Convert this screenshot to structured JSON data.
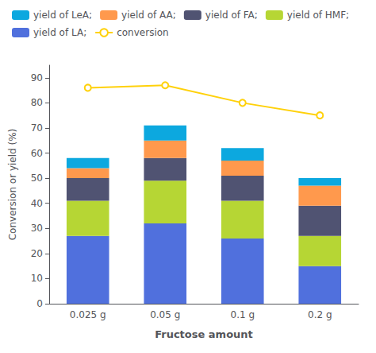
{
  "chart_data": {
    "type": "bar",
    "stacked": true,
    "categories": [
      "0.025 g",
      "0.05 g",
      "0.1 g",
      "0.2 g"
    ],
    "series": [
      {
        "name": "yield of LA;",
        "type": "bar",
        "values": [
          27,
          32,
          26,
          15
        ]
      },
      {
        "name": "yield of HMF;",
        "type": "bar",
        "values": [
          14,
          17,
          15,
          12
        ]
      },
      {
        "name": "yield of FA;",
        "type": "bar",
        "values": [
          9,
          9,
          10,
          12
        ]
      },
      {
        "name": "yield of AA;",
        "type": "bar",
        "values": [
          4,
          7,
          6,
          8
        ]
      },
      {
        "name": "yield of LeA;",
        "type": "bar",
        "values": [
          4,
          6,
          5,
          3
        ]
      },
      {
        "name": "conversion",
        "type": "line",
        "marker": "circle",
        "values": [
          86,
          87,
          80,
          75
        ]
      }
    ],
    "xlabel": "Fructose amount",
    "ylabel": "Conversion or yield (%)",
    "ylim": [
      0,
      95
    ],
    "yticks": [
      0,
      10,
      20,
      30,
      40,
      50,
      60,
      70,
      80,
      90
    ],
    "grid": false,
    "legend": "top left"
  }
}
